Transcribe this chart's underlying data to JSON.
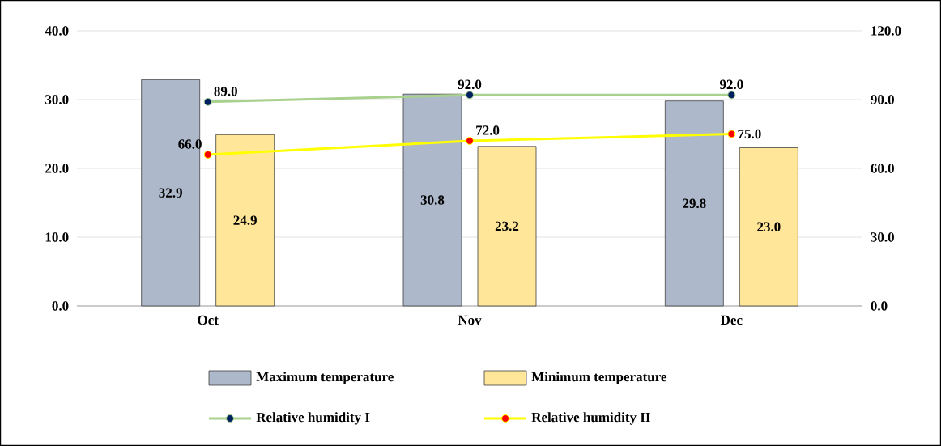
{
  "chart_data": {
    "type": "bar",
    "categories": [
      "Oct",
      "Nov",
      "Dec"
    ],
    "series": [
      {
        "name": "Maximum temperature",
        "color": "#adb9ca",
        "values": [
          32.9,
          30.8,
          29.8
        ],
        "value_labels": [
          "32.9",
          "30.8",
          "29.8"
        ]
      },
      {
        "name": "Minimum temperature",
        "color": "#ffe699",
        "values": [
          24.9,
          23.2,
          23.0
        ],
        "value_labels": [
          "24.9",
          "23.2",
          "23.0"
        ]
      },
      {
        "name": "Relative humidity I",
        "type": "line",
        "axis": "y2",
        "color": "#a9d18e",
        "colors": [
          "#002060",
          "#002060",
          "#002060"
        ],
        "values": [
          89.0,
          92.0,
          92.0
        ],
        "value_labels": [
          "89.0",
          "92.0",
          "92.0"
        ]
      },
      {
        "name": "Relative humidity II",
        "type": "line",
        "axis": "y2",
        "color": "#ffff00",
        "colors": [
          "#ff0000",
          "#ff0000",
          "#ff0000"
        ],
        "values": [
          66.0,
          72.0,
          75.0
        ],
        "value_labels": [
          "66.0",
          "72.0",
          "75.0"
        ]
      }
    ],
    "ylim": [
      0,
      40
    ],
    "yticks": [
      {
        "value": 0,
        "label": "0.0"
      },
      {
        "value": 10,
        "label": "10.0"
      },
      {
        "value": 20,
        "label": "20.0"
      },
      {
        "value": 30,
        "label": "30.0"
      },
      {
        "value": 40,
        "label": "40.0"
      }
    ],
    "y2lim": [
      0,
      120
    ],
    "y2ticks": [
      {
        "value": 0,
        "label": "0.0"
      },
      {
        "value": 30,
        "label": "30.0"
      },
      {
        "value": 60,
        "label": "60.0"
      },
      {
        "value": 90,
        "label": "90.0"
      },
      {
        "value": 120,
        "label": "120.0"
      }
    ],
    "grid": "y",
    "legend": "bottom",
    "marker": "circle",
    "line_style": "solid"
  }
}
